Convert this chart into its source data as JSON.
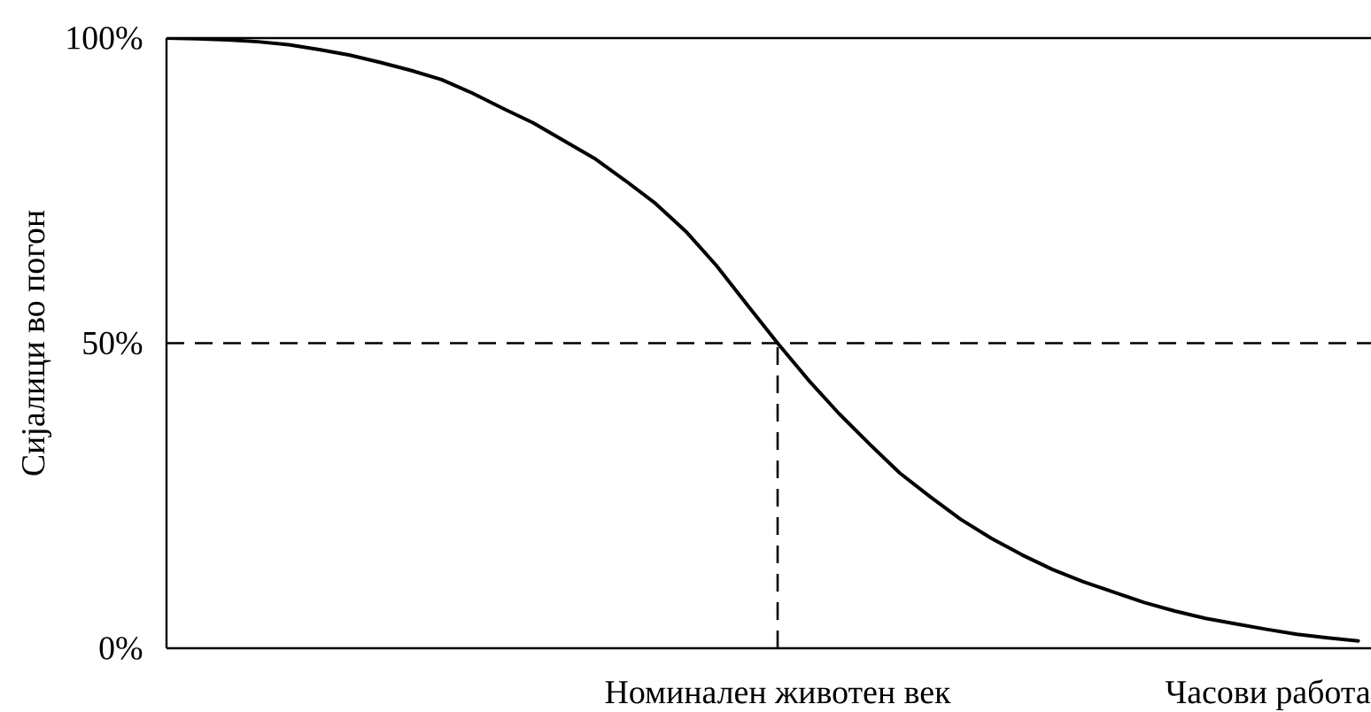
{
  "chart_data": {
    "type": "line",
    "ylabel": "Сијалици во погон",
    "xlabel": "Часови работа",
    "categories": [
      null,
      null,
      null,
      null,
      null,
      null,
      null,
      null,
      null,
      null,
      null,
      null,
      null,
      null,
      null,
      null,
      null,
      null,
      null,
      null,
      "Номинален животен век",
      null,
      null,
      null,
      null,
      null,
      null,
      null,
      null,
      null,
      null,
      null,
      null,
      null,
      null,
      null,
      null,
      null,
      null,
      null
    ],
    "series": [
      {
        "color": "#000000",
        "values": [
          100,
          99.9,
          99.7,
          99.4,
          98.9,
          98.1,
          97.2,
          96.0,
          94.7,
          93.2,
          91.0,
          88.5,
          86.1,
          83.2,
          80.3,
          76.7,
          72.9,
          68.3,
          62.7,
          56.3,
          50,
          44.0,
          38.5,
          33.5,
          28.7,
          24.8,
          21.1,
          18.0,
          15.3,
          12.9,
          10.9,
          9.2,
          7.5,
          6.1,
          4.9,
          4.0,
          3.1,
          2.3,
          1.7,
          1.2
        ]
      }
    ],
    "ylim": [
      0,
      100
    ],
    "yticks": [
      {
        "value": 0,
        "label": "0%"
      },
      {
        "value": 50,
        "label": "50%"
      },
      {
        "value": 100,
        "label": "100%"
      }
    ],
    "ref_lines": [
      {
        "axis": "y",
        "value": 50,
        "line_style": "dashed",
        "color": "#000000"
      },
      {
        "axis": "x",
        "value": "Номинален животен век",
        "line_style": "dashed",
        "color": "#000000"
      }
    ]
  }
}
